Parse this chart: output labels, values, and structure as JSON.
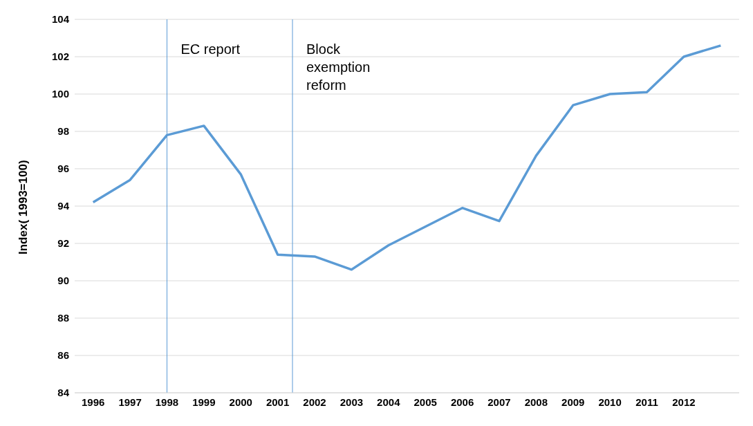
{
  "chart_data": {
    "type": "line",
    "ylabel": "Index( 1993=100)",
    "x": [
      1996,
      1997,
      1998,
      1999,
      2000,
      2001,
      2002,
      2003,
      2004,
      2005,
      2006,
      2007,
      2008,
      2009,
      2010,
      2011,
      2012,
      2013
    ],
    "series": [
      {
        "color": "#5b9bd5",
        "values": [
          94.2,
          95.4,
          97.8,
          98.3,
          95.7,
          91.4,
          91.3,
          90.6,
          91.9,
          92.9,
          93.9,
          93.2,
          96.7,
          99.4,
          100.0,
          100.1,
          102.0,
          102.6
        ]
      }
    ],
    "xlim": [
      1995.5,
      2013.5
    ],
    "xticks": [
      1996,
      1997,
      1998,
      1999,
      2000,
      2001,
      2002,
      2003,
      2004,
      2005,
      2006,
      2007,
      2008,
      2009,
      2010,
      2011,
      2012
    ],
    "ylim": [
      84,
      104
    ],
    "yticks": [
      84,
      86,
      88,
      90,
      92,
      94,
      96,
      98,
      100,
      102,
      104
    ],
    "ref_lines": [
      {
        "axis": "x",
        "value": 1998,
        "label": "EC report",
        "color": "#5b9bd5"
      },
      {
        "axis": "x",
        "value": 2001.4,
        "label": "Block exemption reform",
        "color": "#5b9bd5"
      }
    ],
    "grid": "y",
    "legend": false,
    "marker": "none",
    "line_style": "solid"
  }
}
